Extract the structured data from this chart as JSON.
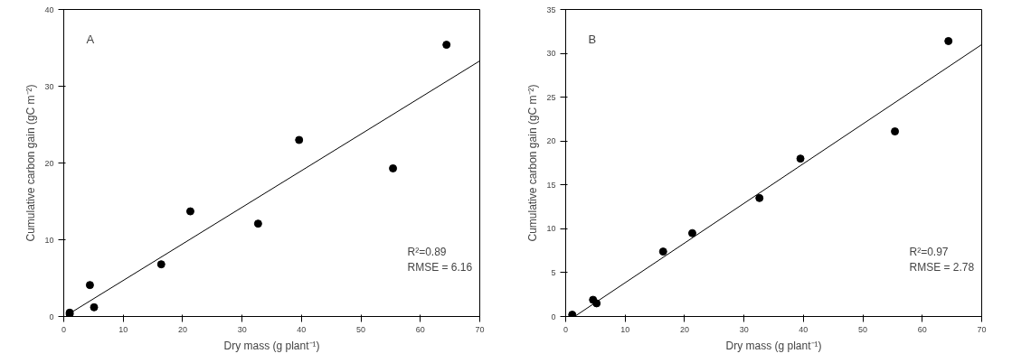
{
  "chart_data": [
    {
      "type": "scatter",
      "xlabel": "Dry mass (g plant⁻¹)",
      "ylabel": "Cumulative carbon gain (gC m⁻²)",
      "annotations": [
        "A",
        "R²=0.89",
        "RMSE = 6.16"
      ],
      "xlim": [
        0,
        70
      ],
      "ylim": [
        0,
        40
      ],
      "xticks": [
        0,
        10,
        20,
        30,
        40,
        50,
        60,
        70
      ],
      "yticks": [
        0,
        10,
        20,
        30,
        40
      ],
      "grid": false,
      "series": [
        {
          "marker": "circle",
          "color": "#000000",
          "x": [
            1.0,
            1.0,
            4.4,
            5.1,
            16.4,
            21.3,
            32.7,
            39.6,
            55.4,
            64.4
          ],
          "values": [
            0.5,
            0.3,
            4.1,
            1.2,
            6.8,
            13.7,
            12.1,
            23.0,
            19.3,
            35.4
          ]
        },
        {
          "type": "line",
          "color": "#000000",
          "x": [
            1.0,
            70
          ],
          "values": [
            0.4,
            33.3
          ]
        }
      ]
    },
    {
      "type": "scatter",
      "xlabel": "Dry mass (g plant⁻¹)",
      "ylabel": "Cumulative carbon gain (gC m⁻²)",
      "annotations": [
        "B",
        "R²=0.97",
        "RMSE = 2.78"
      ],
      "xlim": [
        0,
        70
      ],
      "ylim": [
        0,
        35
      ],
      "xticks": [
        0,
        10,
        20,
        30,
        40,
        50,
        60,
        70
      ],
      "yticks": [
        0,
        5,
        10,
        15,
        20,
        25,
        30,
        35
      ],
      "grid": false,
      "series": [
        {
          "marker": "circle",
          "color": "#000000",
          "x": [
            1.1,
            4.6,
            5.2,
            16.4,
            21.3,
            32.6,
            39.5,
            55.4,
            64.4
          ],
          "values": [
            0.2,
            1.9,
            1.5,
            7.4,
            9.5,
            13.5,
            18.0,
            21.1,
            31.4
          ]
        },
        {
          "type": "line",
          "color": "#000000",
          "x": [
            1.5,
            70
          ],
          "values": [
            0.0,
            31.0
          ]
        }
      ]
    }
  ]
}
